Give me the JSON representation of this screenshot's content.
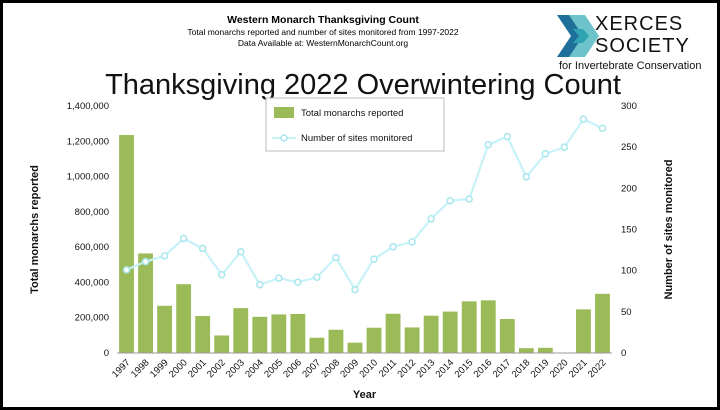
{
  "header": {
    "title": "Western Monarch Thanksgiving Count",
    "subtitle": "Total monarchs reported and number of sites monitored from 1997-2022",
    "data_note": "Data Available at: WesternMonarchCount.org"
  },
  "logo": {
    "line1": "XERCES",
    "line2": "SOCIETY",
    "line3": "for Invertebrate Conservation",
    "colors": [
      "#1e6f9a",
      "#6cc3c9",
      "#2fa3b0"
    ]
  },
  "colors": {
    "bar": "#9bbb59",
    "line": "#c7f2f7",
    "marker_edge": "#a8e6ee"
  },
  "chart_data": {
    "type": "bar",
    "title": "Thanksgiving 2022 Overwintering Count",
    "xlabel": "Year",
    "ylabel": "Total monarchs reported",
    "y2label": "Number of sites monitored",
    "ylim": [
      0,
      1400000
    ],
    "y2lim": [
      0,
      300
    ],
    "y_ticks": [
      "0",
      "200,000",
      "400,000",
      "600,000",
      "800,000",
      "1,000,000",
      "1,200,000",
      "1,400,000"
    ],
    "y2_ticks": [
      "0",
      "50",
      "100",
      "150",
      "200",
      "250",
      "300"
    ],
    "grid": false,
    "legend_position": "top-center",
    "categories": [
      "1997",
      "1998",
      "1999",
      "2000",
      "2001",
      "2002",
      "2003",
      "2004",
      "2005",
      "2006",
      "2007",
      "2008",
      "2009",
      "2010",
      "2011",
      "2012",
      "2013",
      "2014",
      "2015",
      "2016",
      "2017",
      "2018",
      "2019",
      "2020",
      "2021",
      "2022"
    ],
    "series": [
      {
        "name": "Total monarchs reported",
        "kind": "bar",
        "axis": "left",
        "values": [
          1235490,
          564350,
          267574,
          390057,
          209570,
          99353,
          254378,
          205085,
          218679,
          221058,
          86437,
          131889,
          58468,
          143204,
          222525,
          144812,
          211275,
          234731,
          292888,
          298464,
          192624,
          27218,
          29418,
          1914,
          247237,
          335479
        ]
      },
      {
        "name": "Number of sites monitored",
        "kind": "line",
        "axis": "right",
        "values": [
          101,
          111,
          118,
          139,
          127,
          95,
          123,
          83,
          91,
          86,
          92,
          116,
          77,
          114,
          129,
          135,
          163,
          185,
          187,
          253,
          263,
          214,
          242,
          250,
          284,
          273
        ]
      }
    ]
  }
}
